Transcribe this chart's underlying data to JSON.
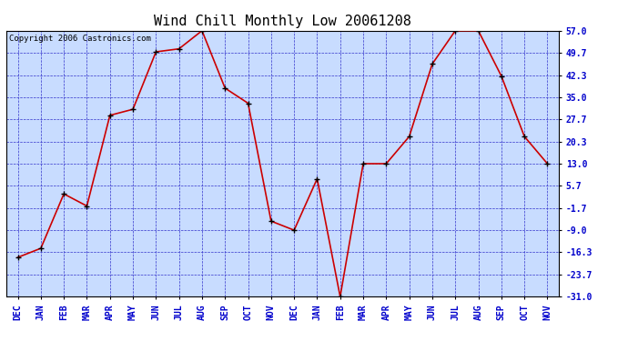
{
  "title": "Wind Chill Monthly Low 20061208",
  "copyright": "Copyright 2006 Castronics.com",
  "labels": [
    "DEC",
    "JAN",
    "FEB",
    "MAR",
    "APR",
    "MAY",
    "JUN",
    "JUL",
    "AUG",
    "SEP",
    "OCT",
    "NOV",
    "DEC",
    "JAN",
    "FEB",
    "MAR",
    "APR",
    "MAY",
    "JUN",
    "JUL",
    "AUG",
    "SEP",
    "OCT",
    "NOV"
  ],
  "values": [
    -18,
    -15,
    3,
    -1,
    29,
    31,
    50,
    51,
    57,
    38,
    33,
    -6,
    -9,
    8,
    -31,
    13,
    13,
    22,
    46,
    57,
    57,
    42,
    22,
    13
  ],
  "yticks": [
    -31.0,
    -23.7,
    -16.3,
    -9.0,
    -1.7,
    5.7,
    13.0,
    20.3,
    27.7,
    35.0,
    42.3,
    49.7,
    57.0
  ],
  "ytick_labels": [
    "-31.0",
    "-23.7",
    "-16.3",
    "-9.0",
    "-1.7",
    "5.7",
    "13.0",
    "20.3",
    "27.7",
    "35.0",
    "42.3",
    "49.7",
    "57.0"
  ],
  "ylim": [
    -31.0,
    57.0
  ],
  "line_color": "#CC0000",
  "marker_color": "#000000",
  "bg_color": "#C8DCFF",
  "grid_color": "#3333CC",
  "title_fontsize": 11,
  "label_fontsize": 7,
  "copyright_fontsize": 6.5
}
